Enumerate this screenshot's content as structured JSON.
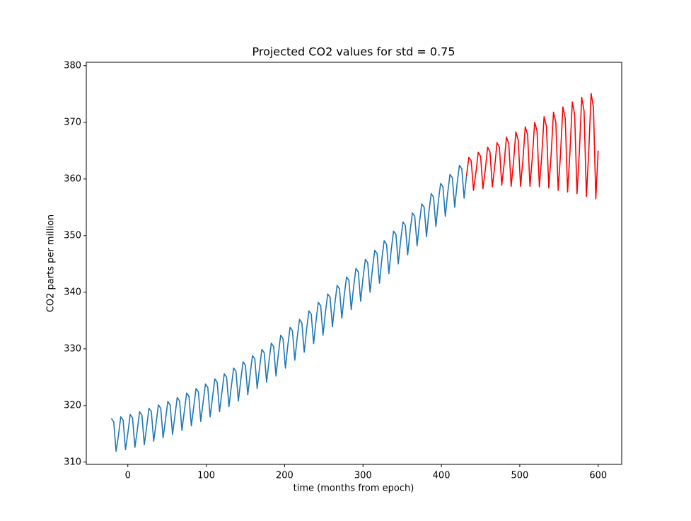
{
  "chart_data": {
    "type": "line",
    "title": "Projected CO2 values for std = 0.75",
    "xlabel": "time (months from epoch)",
    "ylabel": "CO2 parts per million",
    "xlim": [
      -53,
      630
    ],
    "ylim": [
      309.6,
      380.6
    ],
    "xticks": [
      0,
      100,
      200,
      300,
      400,
      500,
      600
    ],
    "yticks": [
      310,
      320,
      330,
      340,
      350,
      360,
      370,
      380
    ],
    "grid": false,
    "series": [
      {
        "color": "#1f77b4",
        "x": [
          -21,
          -18,
          -15,
          -12,
          -9,
          -6,
          -3,
          0,
          3,
          6,
          9,
          12,
          15,
          18,
          21,
          24,
          27,
          30,
          33,
          36,
          39,
          42,
          45,
          48,
          51,
          54,
          57,
          60,
          63,
          66,
          69,
          72,
          75,
          78,
          81,
          84,
          87,
          90,
          93,
          96,
          99,
          102,
          105,
          108,
          111,
          114,
          117,
          120,
          123,
          126,
          129,
          132,
          135,
          138,
          141,
          144,
          147,
          150,
          153,
          156,
          159,
          162,
          165,
          168,
          171,
          174,
          177,
          180,
          183,
          186,
          189,
          192,
          195,
          198,
          201,
          204,
          207,
          210,
          213,
          216,
          219,
          222,
          225,
          228,
          231,
          234,
          237,
          240,
          243,
          246,
          249,
          252,
          255,
          258,
          261,
          264,
          267,
          270,
          273,
          276,
          279,
          282,
          285,
          288,
          291,
          294,
          297,
          300,
          303,
          306,
          309,
          312,
          315,
          318,
          321,
          324,
          327,
          330,
          333,
          336,
          339,
          342,
          345,
          348,
          351,
          354,
          357,
          360,
          363,
          366,
          369,
          372,
          375,
          378,
          381,
          384,
          387,
          390,
          393,
          396,
          399,
          402,
          405,
          408,
          411,
          414,
          417,
          420,
          423,
          426,
          429,
          432
        ],
        "values": [
          317.7,
          317.1,
          311.9,
          314.7,
          318.0,
          317.4,
          312.2,
          315.1,
          318.4,
          317.8,
          312.6,
          315.6,
          318.9,
          318.3,
          313.1,
          316.2,
          319.5,
          318.9,
          313.7,
          316.8,
          320.1,
          319.5,
          314.3,
          317.4,
          320.7,
          320.1,
          314.9,
          318.1,
          321.4,
          320.8,
          315.6,
          318.9,
          322.2,
          321.6,
          316.4,
          319.7,
          323.0,
          322.4,
          317.2,
          320.5,
          323.8,
          323.2,
          318.0,
          321.4,
          324.7,
          324.1,
          318.9,
          322.3,
          325.6,
          325.0,
          319.8,
          323.3,
          326.6,
          326.0,
          320.8,
          324.4,
          327.7,
          327.1,
          321.9,
          325.5,
          328.8,
          328.2,
          323.0,
          326.6,
          329.9,
          329.3,
          324.1,
          327.7,
          331.0,
          330.4,
          325.2,
          329.1,
          332.4,
          331.8,
          326.6,
          330.5,
          333.8,
          333.2,
          328.0,
          331.9,
          335.2,
          334.6,
          329.4,
          333.4,
          336.7,
          336.1,
          330.9,
          334.9,
          338.2,
          337.6,
          332.4,
          336.4,
          339.7,
          339.1,
          333.9,
          337.9,
          341.2,
          340.6,
          335.4,
          339.4,
          342.7,
          342.1,
          336.9,
          340.9,
          344.2,
          343.6,
          338.4,
          342.5,
          345.8,
          345.2,
          340.0,
          344.1,
          347.4,
          346.8,
          341.6,
          345.8,
          349.1,
          348.5,
          343.3,
          347.5,
          350.8,
          350.2,
          345.0,
          349.1,
          352.4,
          351.8,
          346.6,
          350.7,
          354.0,
          353.4,
          348.2,
          352.3,
          355.6,
          355.0,
          349.8,
          354.1,
          357.4,
          356.8,
          351.6,
          355.9,
          359.2,
          358.6,
          353.4,
          357.5,
          360.8,
          360.2,
          355.0,
          359.1,
          362.4,
          361.8,
          356.6,
          360.5
        ]
      },
      {
        "color": "#ff0000",
        "x": [
          432,
          435,
          438,
          441,
          444,
          447,
          450,
          453,
          456,
          459,
          462,
          465,
          468,
          471,
          474,
          477,
          480,
          483,
          486,
          489,
          492,
          495,
          498,
          501,
          504,
          507,
          510,
          513,
          516,
          519,
          522,
          525,
          528,
          531,
          534,
          537,
          540,
          543,
          546,
          549,
          552,
          555,
          558,
          561,
          564,
          567,
          570,
          573,
          576,
          579,
          582,
          585,
          588,
          591,
          594,
          597,
          600
        ],
        "values": [
          360.5,
          363.8,
          363.2,
          358.0,
          361.1,
          364.7,
          364.0,
          358.3,
          361.6,
          365.6,
          364.8,
          358.6,
          362.2,
          366.4,
          365.6,
          358.9,
          362.6,
          367.4,
          366.2,
          358.7,
          363.0,
          368.3,
          366.9,
          358.7,
          363.4,
          369.2,
          367.8,
          358.7,
          363.8,
          370.0,
          368.5,
          358.6,
          364.0,
          371.0,
          369.3,
          358.4,
          364.3,
          371.8,
          370.0,
          358.0,
          364.5,
          372.7,
          370.7,
          357.7,
          364.7,
          373.6,
          371.4,
          357.4,
          364.8,
          374.4,
          372.0,
          356.9,
          364.9,
          375.1,
          372.6,
          356.5,
          365.0
        ]
      }
    ]
  }
}
